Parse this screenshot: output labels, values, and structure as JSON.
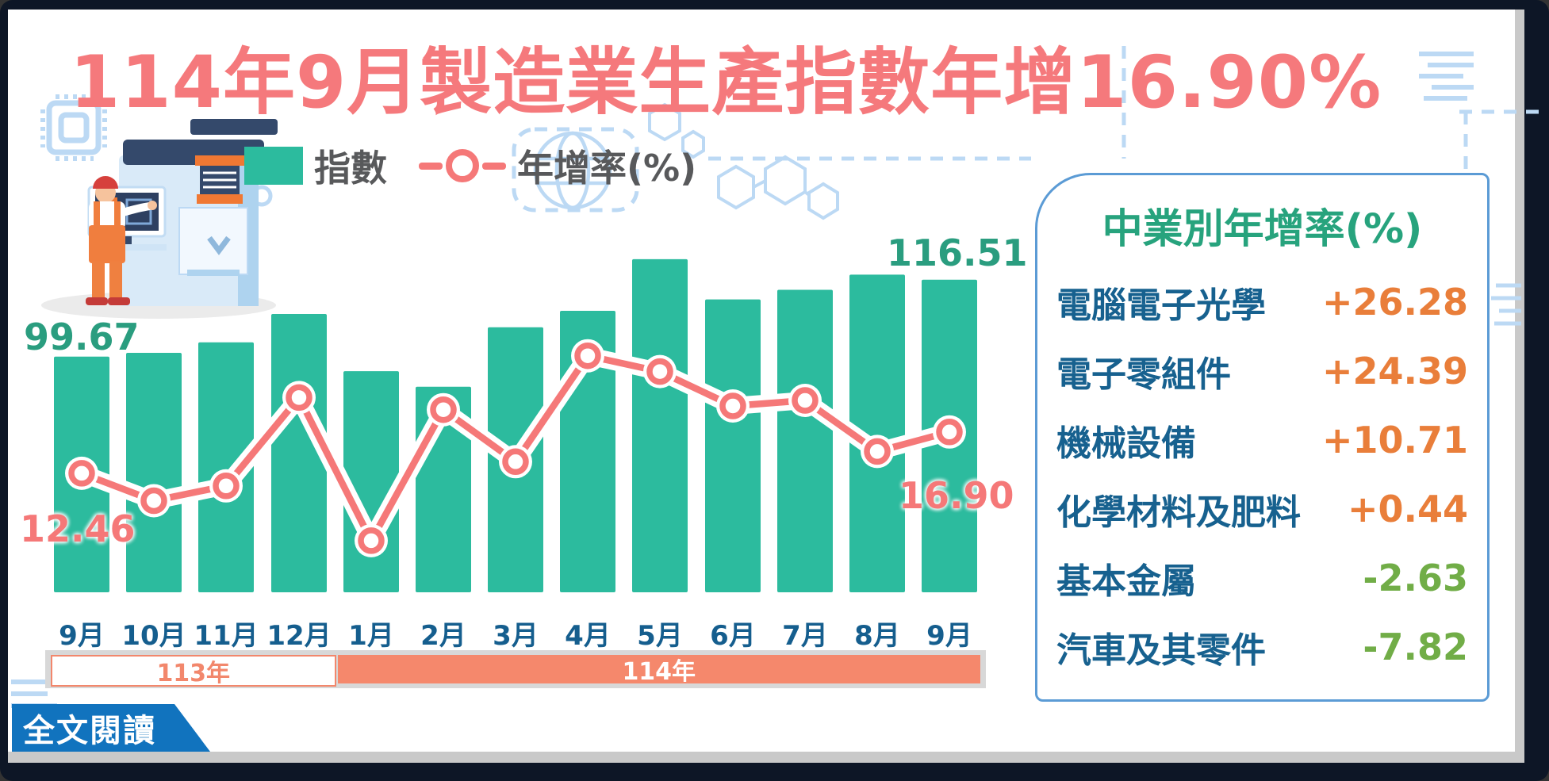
{
  "title": "114年9月製造業生產指數年增16.90%",
  "legend": {
    "bar_label": "指數",
    "line_label": "年增率(%)"
  },
  "chart_data": {
    "type": "bar+line combo",
    "categories": [
      "9月",
      "10月",
      "11月",
      "12月",
      "1月",
      "2月",
      "3月",
      "4月",
      "5月",
      "6月",
      "7月",
      "8月",
      "9月"
    ],
    "series": [
      {
        "name": "指數",
        "type": "bar",
        "color": "#2cbb9e",
        "values": [
          99.67,
          100.5,
          102.8,
          109.0,
          96.5,
          93.1,
          106.1,
          109.7,
          121.0,
          112.2,
          114.3,
          117.6,
          116.51
        ],
        "first_value_label": "99.67",
        "last_value_label": "116.51"
      },
      {
        "name": "年增率(%)",
        "type": "line",
        "color": "#f57878",
        "values": [
          12.46,
          9.5,
          11.1,
          20.6,
          5.2,
          19.3,
          13.7,
          25.1,
          23.4,
          19.7,
          20.3,
          14.8,
          16.9
        ],
        "first_value_label": "12.46",
        "last_value_label": "16.90"
      }
    ],
    "bar_axis": {
      "min": 48.1,
      "max": 132.6
    },
    "line_axis": {
      "min": -0.35,
      "max": 41.2
    },
    "grid": "off",
    "legend_position": "top",
    "year_bands": [
      {
        "label": "113年",
        "months": 4
      },
      {
        "label": "114年",
        "months": 9
      }
    ]
  },
  "panel": {
    "title": "中業別年增率(%)",
    "rows": [
      {
        "label": "電腦電子光學",
        "value": "+26.28",
        "direction": "positive"
      },
      {
        "label": "電子零組件",
        "value": "+24.39",
        "direction": "positive"
      },
      {
        "label": "機械設備",
        "value": "+10.71",
        "direction": "positive"
      },
      {
        "label": "化學材料及肥料",
        "value": "+0.44",
        "direction": "positive"
      },
      {
        "label": "基本金屬",
        "value": "-2.63",
        "direction": "negative"
      },
      {
        "label": "汽車及其零件",
        "value": "-7.82",
        "direction": "negative"
      }
    ]
  },
  "footer": {
    "read_more": "全文閱讀"
  },
  "colors": {
    "title": "#f5797c",
    "bar": "#2cbb9e",
    "bar_label": "#2a9d7f",
    "line": "#f57878",
    "month_label": "#155e8e",
    "year_band_fill": "#f5886c",
    "panel_border": "#5b9bd5",
    "panel_title": "#27a37d",
    "industry_label": "#17618f",
    "positive_value": "#e97e3a",
    "negative_value": "#71ad47",
    "button": "#1173be",
    "decor_blue": "#bcd9f4"
  },
  "icons": [
    "cpu-chip-icon",
    "globe-icon",
    "hexagon-molecule-icon",
    "worker-at-machine-illustration"
  ]
}
